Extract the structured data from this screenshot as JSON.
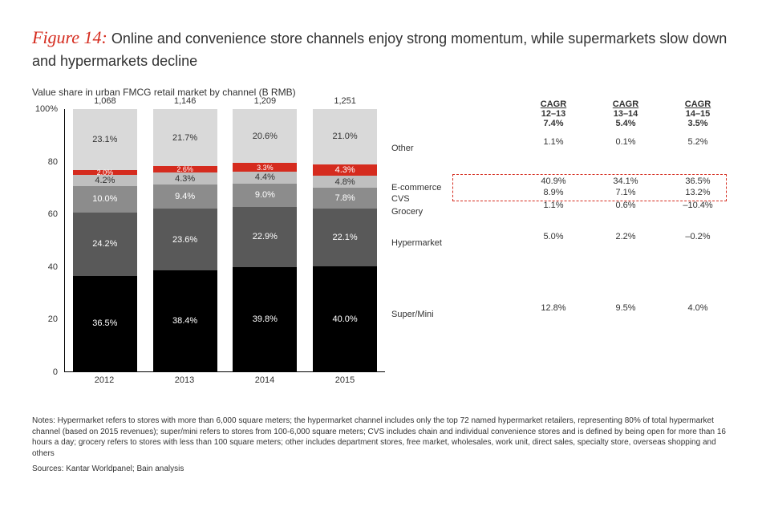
{
  "figure": {
    "label": "Figure 14:",
    "title_rest": " Online and convenience store channels enjoy strong momentum, while supermarkets slow down and hypermarkets decline"
  },
  "subtitle": "Value share in urban FMCG retail market by channel (B RMB)",
  "chart": {
    "type": "stacked-bar-100pct",
    "y_axis": {
      "max": 100,
      "ticks": [
        0,
        20,
        40,
        60,
        80,
        100
      ],
      "suffix_top": "%"
    },
    "years": [
      "2012",
      "2013",
      "2014",
      "2015"
    ],
    "totals": [
      "1,068",
      "1,146",
      "1,209",
      "1,251"
    ],
    "segments_order": [
      "super_mini",
      "hypermarket",
      "grocery",
      "cvs",
      "ecommerce",
      "other"
    ],
    "segments": {
      "super_mini": {
        "label": "Super/Mini",
        "color": "#000000",
        "text": "dark",
        "values": [
          36.5,
          38.4,
          39.8,
          40.0
        ]
      },
      "hypermarket": {
        "label": "Hypermarket",
        "color": "#595959",
        "text": "dark",
        "values": [
          24.2,
          23.6,
          22.9,
          22.1
        ]
      },
      "grocery": {
        "label": "Grocery",
        "color": "#8c8c8c",
        "text": "dark",
        "values": [
          10.0,
          9.4,
          9.0,
          7.8
        ]
      },
      "cvs": {
        "label": "CVS",
        "color": "#bfbfbf",
        "text": "light",
        "values": [
          4.2,
          4.3,
          4.4,
          4.8
        ]
      },
      "ecommerce": {
        "label": "E-commerce",
        "color": "#d52b1e",
        "text": "dark",
        "values": [
          2.0,
          2.6,
          3.3,
          4.3
        ]
      },
      "other": {
        "label": "Other",
        "color": "#d9d9d9",
        "text": "light",
        "values": [
          23.1,
          21.7,
          20.6,
          21.0
        ]
      }
    },
    "legend_y_pct_from_top": {
      "other": 15,
      "ecommerce": 30,
      "cvs": 34,
      "grocery": 39,
      "hypermarket": 51,
      "super_mini": 78
    }
  },
  "cagr": {
    "headers": [
      {
        "top": "CAGR",
        "mid": "12–13",
        "val": "7.4%"
      },
      {
        "top": "CAGR",
        "mid": "13–14",
        "val": "5.4%"
      },
      {
        "top": "CAGR",
        "mid": "14–15",
        "val": "3.5%"
      }
    ],
    "rows": {
      "other": [
        "1.1%",
        "0.1%",
        "5.2%"
      ],
      "ecommerce": [
        "40.9%",
        "34.1%",
        "36.5%"
      ],
      "cvs": [
        "8.9%",
        "7.1%",
        "13.2%"
      ],
      "grocery": [
        "1.1%",
        "0.6%",
        "–10.4%"
      ],
      "hypermarket": [
        "5.0%",
        "2.2%",
        "–0.2%"
      ],
      "super_mini": [
        "12.8%",
        "9.5%",
        "4.0%"
      ]
    },
    "highlight_rows": [
      "ecommerce",
      "cvs"
    ]
  },
  "notes": "Notes: Hypermarket refers to stores with more than 6,000 square meters; the hypermarket channel includes only the top 72 named hypermarket retailers, representing 80% of total hypermarket channel (based on 2015 revenues); super/mini refers to stores from 100-6,000 square meters; CVS includes chain and individual convenience stores and is defined by being open for more than 16 hours a day; grocery refers to stores with less than 100 square meters; other includes department stores, free market, wholesales, work unit, direct sales, specialty store, overseas shopping and others",
  "sources": "Sources: Kantar Worldpanel; Bain analysis"
}
